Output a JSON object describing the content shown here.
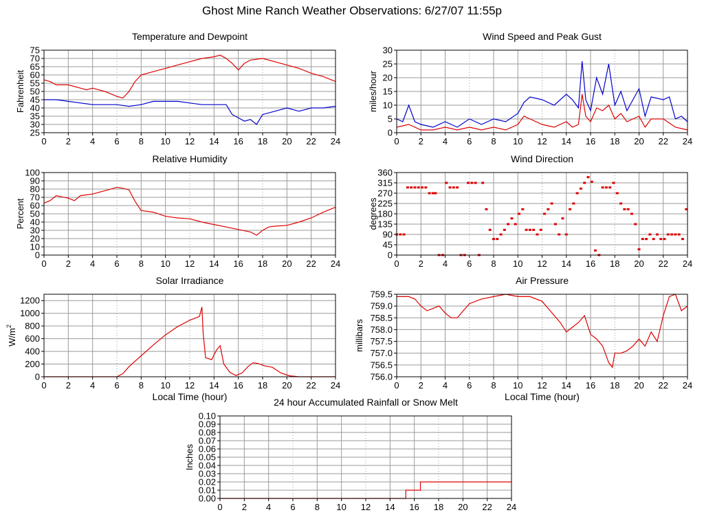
{
  "page": {
    "title": "Ghost Mine Ranch Weather Observations: 6/27/07 11:55p"
  },
  "colors": {
    "red": "#dd0000",
    "blue": "#0000cc",
    "grid": "#999999",
    "axis": "#000000"
  },
  "chart_data": [
    {
      "id": "temp",
      "type": "line",
      "title": "Temperature and Dewpoint",
      "ylabel": "Fahrenheit",
      "xlabel": "",
      "xlim": [
        0,
        24
      ],
      "ylim": [
        25,
        75
      ],
      "xticks": [
        0,
        2,
        4,
        6,
        8,
        10,
        12,
        14,
        16,
        18,
        20,
        22,
        24
      ],
      "yticks": [
        25,
        30,
        35,
        40,
        45,
        50,
        55,
        60,
        65,
        70,
        75
      ],
      "grid": true,
      "series": [
        {
          "color": "#dd0000",
          "x": [
            0,
            0.5,
            1,
            2,
            3,
            3.5,
            4,
            5,
            6,
            6.5,
            7,
            7.5,
            8,
            9,
            10,
            11,
            12,
            13,
            14,
            14.5,
            15,
            15.5,
            16,
            16.5,
            17,
            18,
            19,
            20,
            21,
            22,
            23,
            24
          ],
          "y": [
            57,
            56,
            54,
            54,
            52,
            51,
            52,
            50,
            47,
            46,
            50,
            56,
            60,
            62,
            64,
            66,
            68,
            70,
            71,
            72,
            70,
            67,
            63,
            67,
            69,
            70,
            68,
            66,
            64,
            61,
            59,
            56
          ]
        },
        {
          "color": "#0000cc",
          "x": [
            0,
            1,
            2,
            3,
            4,
            5,
            6,
            7,
            8,
            9,
            10,
            11,
            12,
            13,
            14,
            15,
            15.5,
            16,
            16.5,
            17,
            17.5,
            18,
            19,
            20,
            21,
            22,
            23,
            24
          ],
          "y": [
            45,
            45,
            44,
            43,
            42,
            42,
            42,
            41,
            42,
            44,
            44,
            44,
            43,
            42,
            42,
            42,
            36,
            34,
            32,
            33,
            30,
            36,
            38,
            40,
            38,
            40,
            40,
            41
          ]
        }
      ]
    },
    {
      "id": "wind",
      "type": "line",
      "title": "Wind Speed and Peak Gust",
      "ylabel": "miles/hour",
      "xlabel": "",
      "xlim": [
        0,
        24
      ],
      "ylim": [
        0,
        30
      ],
      "xticks": [
        0,
        2,
        4,
        6,
        8,
        10,
        12,
        14,
        16,
        18,
        20,
        22,
        24
      ],
      "yticks": [
        0,
        5,
        10,
        15,
        20,
        25,
        30
      ],
      "grid": true,
      "series": [
        {
          "color": "#0000cc",
          "x": [
            0,
            0.5,
            1,
            1.5,
            2,
            3,
            4,
            5,
            6,
            7,
            8,
            9,
            10,
            10.5,
            11,
            12,
            13,
            14,
            14.5,
            15,
            15.3,
            15.6,
            16,
            16.5,
            17,
            17.5,
            18,
            18.5,
            19,
            20,
            20.5,
            21,
            22,
            22.5,
            23,
            23.5,
            24
          ],
          "y": [
            5,
            4,
            10,
            4,
            3,
            2,
            4,
            2,
            5,
            3,
            5,
            4,
            7,
            11,
            13,
            12,
            10,
            14,
            12,
            9,
            26,
            12,
            8,
            20,
            14,
            25,
            10,
            15,
            8,
            16,
            6,
            13,
            12,
            13,
            5,
            6,
            4
          ]
        },
        {
          "color": "#dd0000",
          "x": [
            0,
            1,
            2,
            3,
            4,
            5,
            6,
            7,
            8,
            9,
            10,
            10.5,
            11,
            12,
            13,
            14,
            14.5,
            15,
            15.3,
            15.6,
            16,
            16.5,
            17,
            17.5,
            18,
            18.5,
            19,
            20,
            20.5,
            21,
            22,
            23,
            24
          ],
          "y": [
            2,
            3,
            1,
            1,
            2,
            1,
            2,
            1,
            2,
            1,
            3,
            6,
            5,
            3,
            2,
            4,
            2,
            3,
            14,
            6,
            4,
            9,
            8,
            10,
            5,
            7,
            4,
            6,
            2,
            5,
            5,
            2,
            1
          ]
        }
      ]
    },
    {
      "id": "humidity",
      "type": "line",
      "title": "Relative Humidity",
      "ylabel": "Percent",
      "xlabel": "",
      "xlim": [
        0,
        24
      ],
      "ylim": [
        0,
        100
      ],
      "xticks": [
        0,
        2,
        4,
        6,
        8,
        10,
        12,
        14,
        16,
        18,
        20,
        22,
        24
      ],
      "yticks": [
        0,
        10,
        20,
        30,
        40,
        50,
        60,
        70,
        80,
        90,
        100
      ],
      "grid": true,
      "series": [
        {
          "color": "#dd0000",
          "x": [
            0,
            0.5,
            1,
            2,
            2.5,
            3,
            4,
            5,
            6,
            6.5,
            7,
            7.5,
            8,
            9,
            10,
            11,
            12,
            13,
            14,
            15,
            16,
            17,
            17.5,
            18,
            18.5,
            19,
            20,
            21,
            22,
            23,
            24
          ],
          "y": [
            63,
            66,
            72,
            69,
            66,
            72,
            74,
            78,
            82,
            81,
            79,
            65,
            54,
            52,
            47,
            45,
            44,
            40,
            37,
            34,
            31,
            28,
            24,
            30,
            34,
            35,
            36,
            40,
            45,
            52,
            58
          ]
        }
      ]
    },
    {
      "id": "direction",
      "type": "scatter",
      "title": "Wind Direction",
      "ylabel": "degrees",
      "xlabel": "",
      "xlim": [
        0,
        24
      ],
      "ylim": [
        0,
        360
      ],
      "xticks": [
        0,
        2,
        4,
        6,
        8,
        10,
        12,
        14,
        16,
        18,
        20,
        22,
        24
      ],
      "yticks": [
        0,
        45,
        90,
        135,
        180,
        225,
        270,
        315,
        360
      ],
      "grid": true,
      "series": [
        {
          "color": "#dd0000",
          "x": [
            0,
            0.3,
            0.6,
            0.9,
            1.2,
            1.5,
            1.8,
            2.1,
            2.4,
            2.7,
            3.0,
            3.2,
            3.5,
            3.8,
            4.1,
            4.4,
            4.7,
            5.0,
            5.3,
            5.6,
            5.9,
            6.2,
            6.5,
            6.8,
            7.1,
            7.4,
            7.7,
            8.0,
            8.3,
            8.6,
            8.9,
            9.2,
            9.5,
            9.8,
            10.1,
            10.4,
            10.7,
            11.0,
            11.3,
            11.6,
            11.9,
            12.2,
            12.5,
            12.8,
            13.1,
            13.4,
            13.7,
            14.0,
            14.3,
            14.6,
            14.9,
            15.2,
            15.5,
            15.8,
            16.1,
            16.4,
            16.7,
            17.0,
            17.3,
            17.6,
            17.9,
            18.2,
            18.5,
            18.8,
            19.1,
            19.4,
            19.7,
            20.0,
            20.3,
            20.6,
            20.9,
            21.2,
            21.5,
            21.8,
            22.1,
            22.4,
            22.7,
            23.0,
            23.3,
            23.6,
            23.9
          ],
          "y": [
            90,
            90,
            90,
            295,
            295,
            295,
            295,
            295,
            295,
            270,
            270,
            270,
            0,
            0,
            315,
            295,
            295,
            295,
            0,
            0,
            315,
            315,
            315,
            0,
            315,
            200,
            110,
            70,
            70,
            90,
            110,
            135,
            160,
            135,
            180,
            200,
            110,
            110,
            110,
            90,
            110,
            180,
            200,
            225,
            135,
            90,
            160,
            90,
            200,
            225,
            270,
            290,
            315,
            340,
            320,
            20,
            0,
            295,
            295,
            295,
            315,
            270,
            225,
            200,
            200,
            180,
            135,
            25,
            70,
            70,
            90,
            70,
            90,
            70,
            70,
            90,
            90,
            90,
            90,
            70,
            200
          ]
        }
      ]
    },
    {
      "id": "solar",
      "type": "line",
      "title": "Solar Irradiance",
      "ylabel": "W/m",
      "ylabel_sup": "2",
      "xlabel": "Local Time (hour)",
      "xlim": [
        0,
        24
      ],
      "ylim": [
        0,
        1300
      ],
      "xticks": [
        0,
        2,
        4,
        6,
        8,
        10,
        12,
        14,
        16,
        18,
        20,
        22,
        24
      ],
      "yticks": [
        0,
        200,
        400,
        600,
        800,
        1000,
        1200
      ],
      "grid": true,
      "series": [
        {
          "color": "#dd0000",
          "x": [
            0,
            6,
            6.5,
            7,
            8,
            9,
            10,
            11,
            12,
            12.8,
            13.0,
            13.1,
            13.3,
            13.8,
            14.2,
            14.5,
            14.8,
            15.3,
            15.8,
            16.3,
            16.8,
            17.2,
            17.6,
            18.2,
            18.8,
            19.5,
            20.2,
            21,
            22,
            24
          ],
          "y": [
            0,
            0,
            50,
            160,
            330,
            500,
            660,
            790,
            890,
            950,
            1100,
            700,
            300,
            270,
            420,
            490,
            200,
            70,
            20,
            60,
            160,
            220,
            210,
            170,
            150,
            60,
            15,
            0,
            0,
            0
          ]
        }
      ]
    },
    {
      "id": "pressure",
      "type": "line",
      "title": "Air Pressure",
      "ylabel": "millibars",
      "xlabel": "Local Time (hour)",
      "xlim": [
        0,
        24
      ],
      "ylim": [
        756.0,
        759.5
      ],
      "xticks": [
        0,
        2,
        4,
        6,
        8,
        10,
        12,
        14,
        16,
        18,
        20,
        22,
        24
      ],
      "yticks": [
        756.0,
        756.5,
        757.0,
        757.5,
        758.0,
        758.5,
        759.0,
        759.5
      ],
      "yticklabels": [
        "756.0",
        "756.5",
        "757.0",
        "757.5",
        "758.0",
        "758.5",
        "759.0",
        "759.5"
      ],
      "grid": true,
      "series": [
        {
          "color": "#dd0000",
          "x": [
            0,
            0.5,
            1,
            1.5,
            2,
            2.5,
            3,
            3.5,
            4,
            4.5,
            5,
            5.5,
            6,
            7,
            8,
            9,
            10,
            11,
            12,
            13,
            13.5,
            14,
            14.5,
            15,
            15.5,
            16,
            16.5,
            17,
            17.5,
            17.8,
            18,
            18.5,
            19,
            19.5,
            20,
            20.5,
            21,
            21.5,
            22,
            22.5,
            23,
            23.5,
            24
          ],
          "y": [
            759.4,
            759.4,
            759.4,
            759.3,
            759.0,
            758.8,
            758.9,
            759.0,
            758.7,
            758.5,
            758.5,
            758.8,
            759.1,
            759.3,
            759.4,
            759.5,
            759.4,
            759.4,
            759.2,
            758.6,
            758.3,
            757.9,
            758.1,
            758.3,
            758.6,
            757.8,
            757.6,
            757.3,
            756.6,
            756.4,
            757.0,
            757.0,
            757.1,
            757.3,
            757.6,
            757.3,
            757.9,
            757.5,
            758.6,
            759.4,
            759.5,
            758.8,
            759.0
          ]
        }
      ]
    },
    {
      "id": "rain",
      "type": "line",
      "title": "24 hour Accumulated Rainfall or Snow Melt",
      "ylabel": "Inches",
      "xlabel": "",
      "xlim": [
        0,
        24
      ],
      "ylim": [
        0,
        0.1
      ],
      "xticks": [
        0,
        2,
        4,
        6,
        8,
        10,
        12,
        14,
        16,
        18,
        20,
        22,
        24
      ],
      "yticks": [
        0,
        0.01,
        0.02,
        0.03,
        0.04,
        0.05,
        0.06,
        0.07,
        0.08,
        0.09,
        0.1
      ],
      "yticklabels": [
        "0.00",
        "0.01",
        "0.02",
        "0.03",
        "0.04",
        "0.05",
        "0.06",
        "0.07",
        "0.08",
        "0.09",
        "0.10"
      ],
      "grid": true,
      "series": [
        {
          "color": "#dd0000",
          "x": [
            0,
            15.3,
            15.3,
            16.5,
            16.5,
            24
          ],
          "y": [
            0,
            0,
            0.01,
            0.01,
            0.02,
            0.02
          ]
        }
      ]
    }
  ]
}
